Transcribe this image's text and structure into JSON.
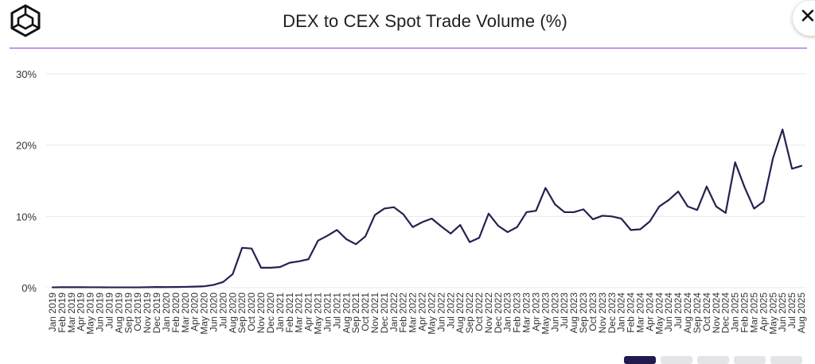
{
  "header": {
    "title": "DEX to CEX Spot Trade Volume (%)",
    "logo_icon": "cube-logo-icon",
    "close_icon": "close-icon",
    "close_symbol": "✕"
  },
  "colors": {
    "line": "#26214f",
    "rule": "#8e3fd6",
    "grid": "#e9e9ee",
    "text": "#333333"
  },
  "chart_data": {
    "type": "line",
    "title": "DEX to CEX Spot Trade Volume (%)",
    "xlabel": "",
    "ylabel": "",
    "ylim": [
      0,
      30
    ],
    "yticks": [
      0,
      10,
      20,
      30
    ],
    "ytick_labels": [
      "0%",
      "10%",
      "20%",
      "30%"
    ],
    "grid": true,
    "legend": "none",
    "categories": [
      "Jan 2019",
      "Feb 2019",
      "Mar 2019",
      "Apr 2019",
      "May 2019",
      "Jun 2019",
      "Jul 2019",
      "Aug 2019",
      "Sep 2019",
      "Oct 2019",
      "Nov 2019",
      "Dec 2019",
      "Jan 2020",
      "Feb 2020",
      "Mar 2020",
      "Apr 2020",
      "May 2020",
      "Jun 2020",
      "Jul 2020",
      "Aug 2020",
      "Sep 2020",
      "Oct 2020",
      "Nov 2020",
      "Dec 2020",
      "Jan 2021",
      "Feb 2021",
      "Mar 2021",
      "Apr 2021",
      "May 2021",
      "Jun 2021",
      "Jul 2021",
      "Aug 2021",
      "Sep 2021",
      "Oct 2021",
      "Nov 2021",
      "Dec 2021",
      "Jan 2022",
      "Feb 2022",
      "Mar 2022",
      "Apr 2022",
      "May 2022",
      "Jun 2022",
      "Jul 2022",
      "Aug 2022",
      "Sep 2022",
      "Oct 2022",
      "Nov 2022",
      "Dec 2022",
      "Jan 2023",
      "Feb 2023",
      "Mar 2023",
      "Apr 2023",
      "May 2023",
      "Jun 2023",
      "Jul 2023",
      "Aug 2023",
      "Sep 2023",
      "Oct 2023",
      "Nov 2023",
      "Dec 2023",
      "Jan 2024",
      "Feb 2024",
      "Mar 2024",
      "Apr 2024",
      "May 2024",
      "Jun 2024",
      "Jul 2024",
      "Aug 2024",
      "Sep 2024",
      "Oct 2024",
      "Nov 2024",
      "Dec 2024",
      "Jan 2025",
      "Feb 2025",
      "Mar 2025",
      "Apr 2025",
      "May 2025",
      "Jun 2025",
      "Jul 2025",
      "Aug 2025"
    ],
    "values": [
      0.05,
      0.07,
      0.07,
      0.07,
      0.06,
      0.06,
      0.05,
      0.05,
      0.05,
      0.05,
      0.07,
      0.1,
      0.08,
      0.1,
      0.12,
      0.15,
      0.2,
      0.4,
      0.8,
      1.9,
      5.6,
      5.5,
      2.8,
      2.8,
      2.9,
      3.5,
      3.7,
      4.0,
      6.6,
      7.3,
      8.1,
      6.8,
      6.1,
      7.2,
      10.2,
      11.1,
      11.3,
      10.3,
      8.5,
      9.2,
      9.7,
      8.6,
      7.6,
      8.8,
      6.4,
      7.0,
      10.4,
      8.7,
      7.8,
      8.5,
      10.6,
      10.8,
      14.0,
      11.7,
      10.6,
      10.6,
      11.0,
      9.6,
      10.1,
      10.0,
      9.7,
      8.1,
      8.2,
      9.3,
      11.4,
      12.3,
      13.5,
      11.4,
      10.9,
      14.2,
      11.4,
      10.5,
      17.6,
      14.1,
      11.1,
      12.1,
      18.2,
      22.2,
      16.7,
      17.1
    ]
  }
}
